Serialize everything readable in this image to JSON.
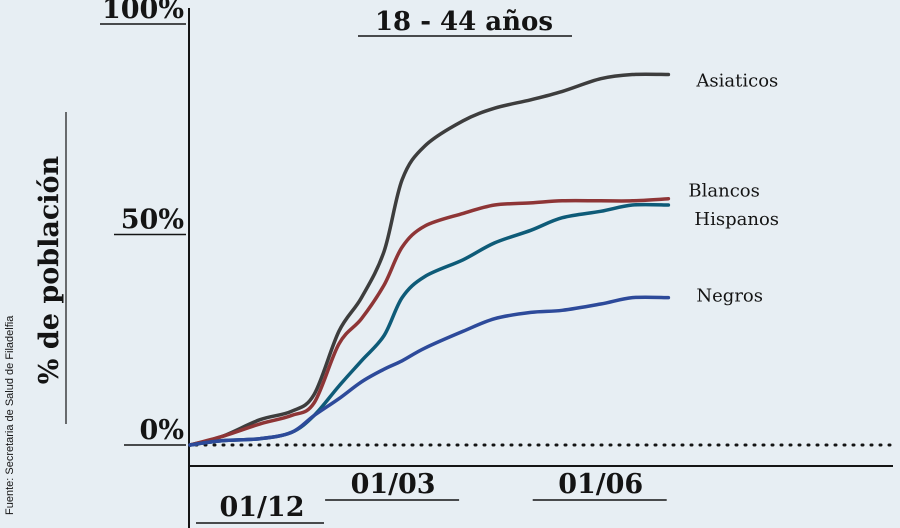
{
  "chart_data": {
    "type": "line",
    "title": "18 - 44 años",
    "ylabel": "% de población",
    "source": "Fuente: Secretaria de Salud de Filadelfia",
    "ylim": [
      0,
      100
    ],
    "xlim": [
      "2020-12-01",
      "2021-07-15"
    ],
    "y_ticks": [
      {
        "label": "0%",
        "value": 0
      },
      {
        "label": "50%",
        "value": 50
      },
      {
        "label": "100%",
        "value": 100
      }
    ],
    "x_ticks": [
      {
        "label": "01/12",
        "date": "2020-12-01"
      },
      {
        "label": "01/03",
        "date": "2021-03-01"
      },
      {
        "label": "01/06",
        "date": "2021-06-01"
      }
    ],
    "baseline_dotted": true,
    "series": [
      {
        "name": "Asiaticos",
        "color": "#3d3d3d",
        "points": [
          [
            "2020-12-01",
            0
          ],
          [
            "2020-12-15",
            2
          ],
          [
            "2021-01-01",
            6
          ],
          [
            "2021-01-15",
            8
          ],
          [
            "2021-01-25",
            12
          ],
          [
            "2021-02-05",
            27
          ],
          [
            "2021-02-15",
            35
          ],
          [
            "2021-02-25",
            46
          ],
          [
            "2021-03-05",
            63
          ],
          [
            "2021-03-15",
            71
          ],
          [
            "2021-04-01",
            77
          ],
          [
            "2021-04-15",
            80
          ],
          [
            "2021-05-01",
            82
          ],
          [
            "2021-05-15",
            84
          ],
          [
            "2021-06-01",
            87
          ],
          [
            "2021-06-15",
            88
          ],
          [
            "2021-07-01",
            88
          ]
        ]
      },
      {
        "name": "Blancos",
        "color": "#8e3536",
        "points": [
          [
            "2020-12-01",
            0
          ],
          [
            "2020-12-15",
            2
          ],
          [
            "2021-01-01",
            5
          ],
          [
            "2021-01-15",
            7
          ],
          [
            "2021-01-25",
            10
          ],
          [
            "2021-02-05",
            24
          ],
          [
            "2021-02-15",
            30
          ],
          [
            "2021-02-25",
            38
          ],
          [
            "2021-03-05",
            47
          ],
          [
            "2021-03-15",
            52
          ],
          [
            "2021-04-01",
            55
          ],
          [
            "2021-04-15",
            57
          ],
          [
            "2021-05-01",
            57.5
          ],
          [
            "2021-05-15",
            58
          ],
          [
            "2021-06-01",
            58
          ],
          [
            "2021-06-15",
            58
          ],
          [
            "2021-07-01",
            58.5
          ]
        ]
      },
      {
        "name": "Hispanos",
        "color": "#0e5b78",
        "points": [
          [
            "2020-12-01",
            0
          ],
          [
            "2020-12-15",
            1
          ],
          [
            "2021-01-01",
            1.5
          ],
          [
            "2021-01-15",
            3
          ],
          [
            "2021-01-25",
            7
          ],
          [
            "2021-02-05",
            14
          ],
          [
            "2021-02-15",
            20
          ],
          [
            "2021-02-25",
            26
          ],
          [
            "2021-03-05",
            35
          ],
          [
            "2021-03-15",
            40
          ],
          [
            "2021-04-01",
            44
          ],
          [
            "2021-04-15",
            48
          ],
          [
            "2021-05-01",
            51
          ],
          [
            "2021-05-15",
            54
          ],
          [
            "2021-06-01",
            55.5
          ],
          [
            "2021-06-15",
            57
          ],
          [
            "2021-07-01",
            57
          ]
        ]
      },
      {
        "name": "Negros",
        "color": "#2d4a9a",
        "points": [
          [
            "2020-12-01",
            0
          ],
          [
            "2020-12-15",
            1
          ],
          [
            "2021-01-01",
            1.5
          ],
          [
            "2021-01-15",
            3
          ],
          [
            "2021-01-25",
            7
          ],
          [
            "2021-02-05",
            11
          ],
          [
            "2021-02-15",
            15
          ],
          [
            "2021-02-25",
            18
          ],
          [
            "2021-03-05",
            20
          ],
          [
            "2021-03-15",
            23
          ],
          [
            "2021-04-01",
            27
          ],
          [
            "2021-04-15",
            30
          ],
          [
            "2021-05-01",
            31.5
          ],
          [
            "2021-05-15",
            32
          ],
          [
            "2021-06-01",
            33.5
          ],
          [
            "2021-06-15",
            35
          ],
          [
            "2021-07-01",
            35
          ]
        ]
      }
    ]
  }
}
